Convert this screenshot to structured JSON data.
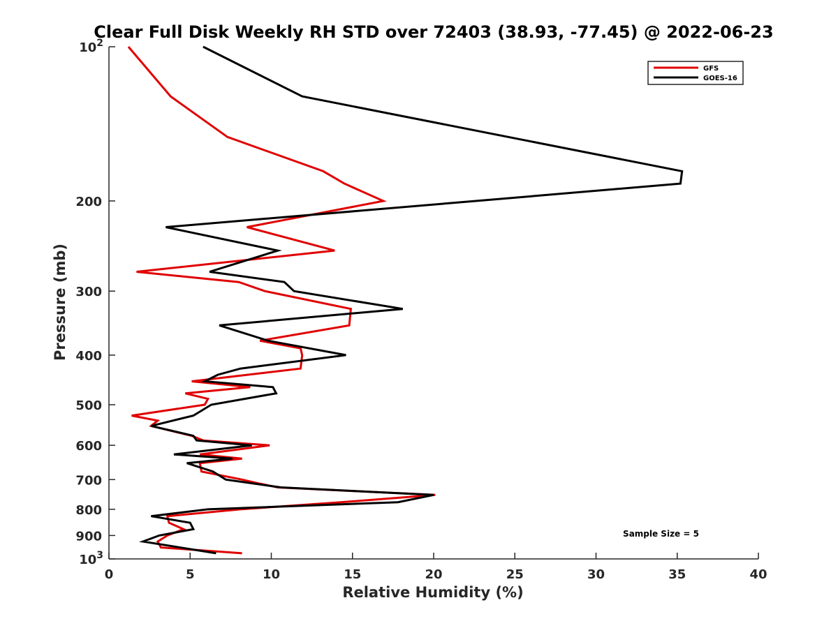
{
  "chart_data": {
    "type": "line",
    "title": "Clear Full Disk Weekly RH STD over 72403 (38.93, -77.45) @ 2022-06-23",
    "xlabel": "Relative Humidity (%)",
    "ylabel": "Pressure (mb)",
    "xlim": [
      0,
      40
    ],
    "ylim": [
      100,
      1000
    ],
    "yscale": "log",
    "y_reversed": true,
    "x_ticks": [
      "0",
      "5",
      "10",
      "15",
      "20",
      "25",
      "30",
      "35",
      "40"
    ],
    "y_ticks": [
      {
        "value": 100,
        "label": "10",
        "sup": "2"
      },
      {
        "value": 200,
        "label": "200",
        "sup": ""
      },
      {
        "value": 300,
        "label": "300",
        "sup": ""
      },
      {
        "value": 400,
        "label": "400",
        "sup": ""
      },
      {
        "value": 500,
        "label": "500",
        "sup": ""
      },
      {
        "value": 600,
        "label": "600",
        "sup": ""
      },
      {
        "value": 700,
        "label": "700",
        "sup": ""
      },
      {
        "value": 800,
        "label": "800",
        "sup": ""
      },
      {
        "value": 900,
        "label": "900",
        "sup": ""
      },
      {
        "value": 1000,
        "label": "10",
        "sup": "3"
      }
    ],
    "grid": false,
    "legend_position": "top-right",
    "series": [
      {
        "name": "GFS",
        "color": "#e00000",
        "points": [
          [
            1.2,
            100
          ],
          [
            3.8,
            125
          ],
          [
            7.3,
            150
          ],
          [
            13.2,
            175
          ],
          [
            14.5,
            185
          ],
          [
            16.9,
            200
          ],
          [
            8.5,
            225
          ],
          [
            13.9,
            250
          ],
          [
            1.7,
            275
          ],
          [
            8.0,
            288
          ],
          [
            9.6,
            300
          ],
          [
            14.9,
            325
          ],
          [
            14.8,
            350
          ],
          [
            9.3,
            375
          ],
          [
            11.8,
            388
          ],
          [
            11.9,
            400
          ],
          [
            11.8,
            425
          ],
          [
            5.1,
            450
          ],
          [
            8.7,
            462
          ],
          [
            4.7,
            475
          ],
          [
            6.1,
            487
          ],
          [
            5.9,
            500
          ],
          [
            1.4,
            525
          ],
          [
            3.0,
            537
          ],
          [
            2.6,
            550
          ],
          [
            5.1,
            575
          ],
          [
            5.8,
            587
          ],
          [
            9.9,
            600
          ],
          [
            5.6,
            625
          ],
          [
            8.2,
            637
          ],
          [
            5.6,
            650
          ],
          [
            5.7,
            675
          ],
          [
            8.2,
            700
          ],
          [
            9.2,
            712
          ],
          [
            10.4,
            725
          ],
          [
            20.1,
            750
          ],
          [
            14.3,
            775
          ],
          [
            8.1,
            800
          ],
          [
            3.6,
            825
          ],
          [
            3.7,
            850
          ],
          [
            4.6,
            875
          ],
          [
            3.6,
            900
          ],
          [
            3.0,
            925
          ],
          [
            3.2,
            950
          ],
          [
            8.2,
            975
          ]
        ]
      },
      {
        "name": "GOES-16",
        "color": "#000000",
        "points": [
          [
            5.8,
            100
          ],
          [
            11.9,
            125
          ],
          [
            35.3,
            175
          ],
          [
            35.2,
            185
          ],
          [
            22.6,
            200
          ],
          [
            3.5,
            225
          ],
          [
            10.4,
            250
          ],
          [
            6.2,
            275
          ],
          [
            10.8,
            288
          ],
          [
            11.4,
            300
          ],
          [
            18.1,
            325
          ],
          [
            6.8,
            350
          ],
          [
            9.8,
            375
          ],
          [
            14.6,
            400
          ],
          [
            8.1,
            425
          ],
          [
            6.7,
            437
          ],
          [
            5.9,
            450
          ],
          [
            10.1,
            462
          ],
          [
            10.3,
            475
          ],
          [
            6.3,
            500
          ],
          [
            5.2,
            525
          ],
          [
            2.6,
            550
          ],
          [
            5.2,
            575
          ],
          [
            5.4,
            587
          ],
          [
            8.8,
            600
          ],
          [
            4.0,
            625
          ],
          [
            7.6,
            637
          ],
          [
            4.8,
            650
          ],
          [
            6.4,
            675
          ],
          [
            7.2,
            700
          ],
          [
            10.6,
            725
          ],
          [
            20.0,
            750
          ],
          [
            17.8,
            775
          ],
          [
            6.1,
            800
          ],
          [
            2.6,
            825
          ],
          [
            5.0,
            850
          ],
          [
            5.2,
            875
          ],
          [
            3.1,
            900
          ],
          [
            2.1,
            925
          ],
          [
            6.6,
            975
          ]
        ]
      }
    ],
    "annotations": [
      {
        "text": "Sample Size = 5",
        "x": 34,
        "y": 905
      }
    ]
  }
}
